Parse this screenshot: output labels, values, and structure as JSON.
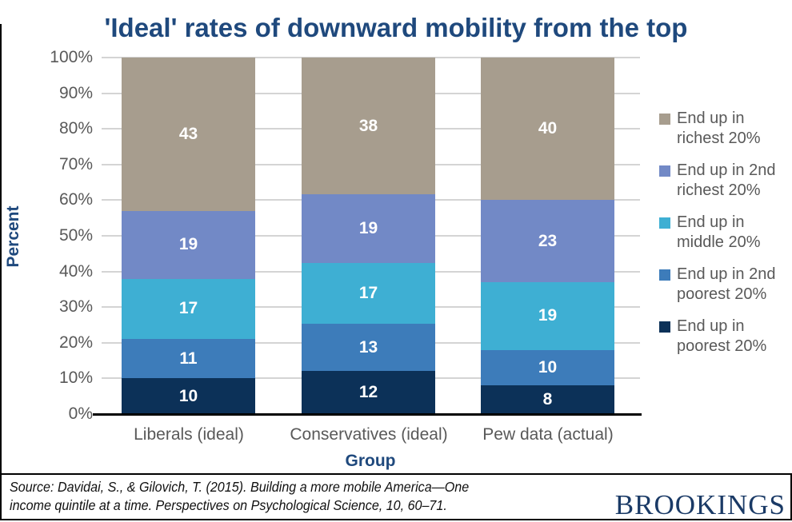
{
  "title": "'Ideal' rates of downward mobility from the top",
  "y_axis": {
    "label": "Percent",
    "ticks": [
      "100%",
      "90%",
      "80%",
      "70%",
      "60%",
      "50%",
      "40%",
      "30%",
      "20%",
      "10%",
      "0%"
    ]
  },
  "x_axis": {
    "label": "Group"
  },
  "chart_data": {
    "type": "bar",
    "stacked": true,
    "title": "'Ideal' rates of downward mobility from the top",
    "xlabel": "Group",
    "ylabel": "Percent",
    "ylim": [
      0,
      100
    ],
    "grid": true,
    "legend_position": "right",
    "categories": [
      "Liberals (ideal)",
      "Conservatives (ideal)",
      "Pew data (actual)"
    ],
    "series": [
      {
        "name": "End up in poorest 20%",
        "color": "#0C3158",
        "values": [
          10,
          12,
          8
        ]
      },
      {
        "name": "End up in 2nd poorest 20%",
        "color": "#3D7CBA",
        "values": [
          11,
          13,
          10
        ]
      },
      {
        "name": "End up in middle 20%",
        "color": "#3EAFD3",
        "values": [
          17,
          17,
          19
        ]
      },
      {
        "name": "End up in 2nd richest 20%",
        "color": "#7289C6",
        "values": [
          19,
          19,
          23
        ]
      },
      {
        "name": "End up in richest 20%",
        "color": "#A79D8E",
        "values": [
          43,
          38,
          40
        ]
      }
    ]
  },
  "legend": {
    "items": [
      {
        "label": "End up in richest 20%",
        "lines": [
          "End up in",
          "richest 20%"
        ],
        "color": "#A79D8E"
      },
      {
        "label": "End up in 2nd richest 20%",
        "lines": [
          "End up in 2nd",
          "richest 20%"
        ],
        "color": "#7289C6"
      },
      {
        "label": "End up in middle 20%",
        "lines": [
          "End up in",
          "middle 20%"
        ],
        "color": "#3EAFD3"
      },
      {
        "label": "End up in 2nd poorest 20%",
        "lines": [
          "End up in 2nd",
          "poorest 20%"
        ],
        "color": "#3D7CBA"
      },
      {
        "label": "End up in poorest 20%",
        "lines": [
          "End up in",
          "poorest 20%"
        ],
        "color": "#0C3158"
      }
    ]
  },
  "footer": {
    "source_line1": "Source: Davidai, S., & Gilovich, T. (2015). Building a more mobile America—One",
    "source_line2": "income quintile at a time. Perspectives on Psychological Science, 10, 60–71.",
    "brand": "BROOKINGS"
  },
  "colors": {
    "title_navy": "#1F497D",
    "axis_text_gray": "#595959",
    "gridline": "#D4D4D4",
    "brand_navy": "#1A3A66"
  }
}
